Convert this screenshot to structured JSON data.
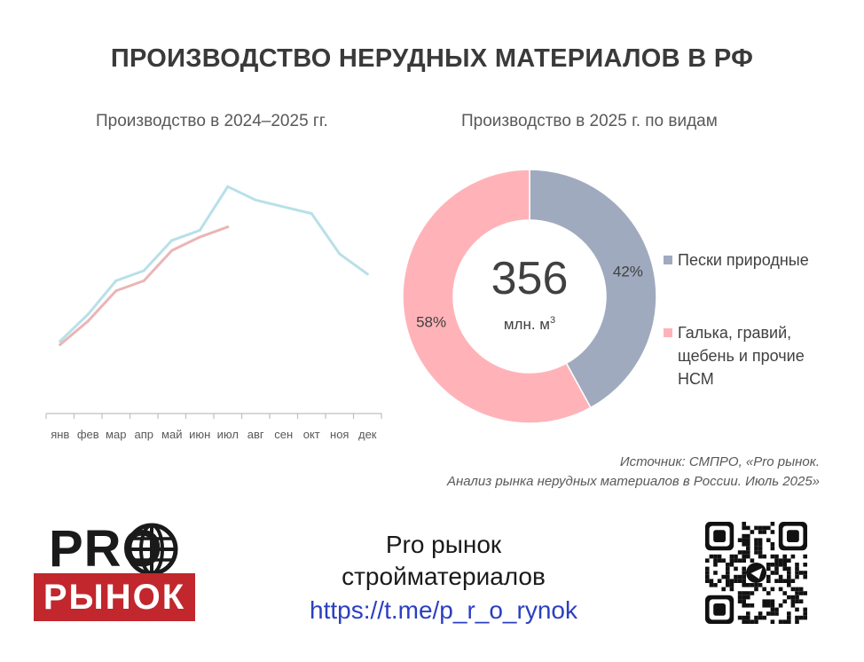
{
  "title": "ПРОИЗВОДСТВО НЕРУДНЫХ МАТЕРИАЛОВ В РФ",
  "chart_data": [
    {
      "type": "line",
      "title": "Производство в 2024–2025 гг.",
      "categories": [
        "янв",
        "фев",
        "мар",
        "апр",
        "май",
        "июн",
        "июл",
        "авг",
        "сен",
        "окт",
        "ноя",
        "дек"
      ],
      "series": [
        {
          "values": [
            28,
            32,
            37,
            38.5,
            43,
            44.5,
            51,
            49,
            48,
            47,
            41,
            38
          ],
          "color": "#b8e0e8"
        },
        {
          "values": [
            27.5,
            31,
            35.5,
            37,
            41.5,
            43.5,
            45,
            null,
            null,
            null,
            null,
            null
          ],
          "color": "#ebb5b5"
        }
      ],
      "ylim": [
        22,
        55
      ]
    },
    {
      "type": "pie",
      "title": "Производство в 2025 г. по видам",
      "center_value": "356",
      "center_unit": "млн. м",
      "center_unit_sup": "3",
      "slices": [
        {
          "label": "Пески природные",
          "value": 42,
          "display": "42%",
          "color": "#a0aabf"
        },
        {
          "label": "Галька, гравий, щебень и прочие НСМ",
          "label_lines": [
            "Галька, гравий,",
            "щебень и прочие",
            "НСМ"
          ],
          "value": 58,
          "display": "58%",
          "color": "#ffb3b8"
        }
      ]
    }
  ],
  "source": {
    "line1": "Источник: СМПРО, «Pro рынок.",
    "line2": "Анализ рынка нерудных материалов в России. Июль 2025»"
  },
  "logo": {
    "top": "PRO",
    "bottom": "РЫНОК"
  },
  "footer": {
    "line1": "Pro рынок",
    "line2": "стройматериалов",
    "link": "https://t.me/p_r_o_rynok"
  },
  "colors": {
    "accent_red": "#c1272d",
    "link_blue": "#2b3fc1",
    "title_gray": "#3a3a3a"
  }
}
